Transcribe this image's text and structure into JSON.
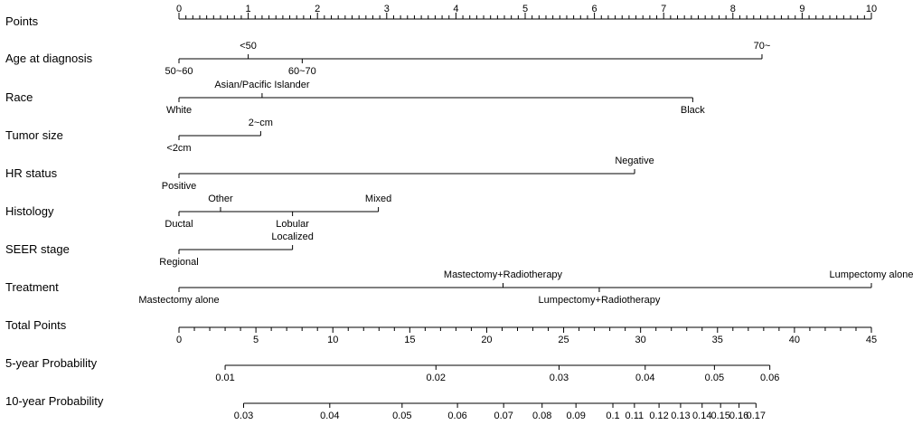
{
  "chart_data": {
    "type": "nomogram",
    "points_scale": {
      "label": "Points",
      "min": 0,
      "max": 10,
      "major_ticks": [
        0,
        1,
        2,
        3,
        4,
        5,
        6,
        7,
        8,
        9,
        10
      ],
      "minor_step": 0.1
    },
    "variables": [
      {
        "label": "Age at diagnosis",
        "levels": [
          {
            "name": "<50",
            "points": 1.0,
            "side": "above"
          },
          {
            "name": "70~",
            "points": 8.42,
            "side": "above"
          },
          {
            "name": "50~60",
            "points": 0,
            "side": "below"
          },
          {
            "name": "60~70",
            "points": 1.78,
            "side": "below"
          }
        ]
      },
      {
        "label": "Race",
        "levels": [
          {
            "name": "Asian/Pacific Islander",
            "points": 1.2,
            "side": "above"
          },
          {
            "name": "White",
            "points": 0,
            "side": "below"
          },
          {
            "name": "Black",
            "points": 7.42,
            "side": "below"
          }
        ]
      },
      {
        "label": "Tumor size",
        "levels": [
          {
            "name": "2~cm",
            "points": 1.18,
            "side": "above"
          },
          {
            "name": "<2cm",
            "points": 0,
            "side": "below"
          }
        ]
      },
      {
        "label": "HR status",
        "levels": [
          {
            "name": "Negative",
            "points": 6.58,
            "side": "above"
          },
          {
            "name": "Positive",
            "points": 0,
            "side": "below"
          }
        ]
      },
      {
        "label": "Histology",
        "levels": [
          {
            "name": "Other",
            "points": 0.6,
            "side": "above"
          },
          {
            "name": "Mixed",
            "points": 2.88,
            "side": "above"
          },
          {
            "name": "Ductal",
            "points": 0,
            "side": "below"
          },
          {
            "name": "Lobular",
            "points": 1.64,
            "side": "below"
          }
        ]
      },
      {
        "label": "SEER stage",
        "levels": [
          {
            "name": "Localized",
            "points": 1.64,
            "side": "above"
          },
          {
            "name": "Regional",
            "points": 0,
            "side": "below"
          }
        ]
      },
      {
        "label": "Treatment",
        "levels": [
          {
            "name": "Mastectomy+Radiotherapy",
            "points": 4.68,
            "side": "above"
          },
          {
            "name": "Lumpectomy alone",
            "points": 10,
            "side": "above"
          },
          {
            "name": "Mastectomy alone",
            "points": 0,
            "side": "below"
          },
          {
            "name": "Lumpectomy+Radiotherapy",
            "points": 6.07,
            "side": "below"
          }
        ]
      }
    ],
    "total_points": {
      "label": "Total Points",
      "min": 0,
      "max": 45,
      "major_ticks": [
        0,
        5,
        10,
        15,
        20,
        25,
        30,
        35,
        40,
        45
      ],
      "minor_step": 1
    },
    "probability_scales": [
      {
        "label": "5-year Probability",
        "ticks": [
          {
            "label": "0.01",
            "total_points": 3.0
          },
          {
            "label": "0.02",
            "total_points": 16.7
          },
          {
            "label": "0.03",
            "total_points": 24.7
          },
          {
            "label": "0.04",
            "total_points": 30.3
          },
          {
            "label": "0.05",
            "total_points": 34.8
          },
          {
            "label": "0.06",
            "total_points": 38.4
          }
        ]
      },
      {
        "label": "10-year Probability",
        "ticks": [
          {
            "label": "0.03",
            "total_points": 4.2
          },
          {
            "label": "0.04",
            "total_points": 9.8
          },
          {
            "label": "0.05",
            "total_points": 14.5
          },
          {
            "label": "0.06",
            "total_points": 18.1
          },
          {
            "label": "0.07",
            "total_points": 21.1
          },
          {
            "label": "0.08",
            "total_points": 23.6
          },
          {
            "label": "0.09",
            "total_points": 25.8
          },
          {
            "label": "0.1",
            "total_points": 28.2
          },
          {
            "label": "0.11",
            "total_points": 29.6
          },
          {
            "label": "0.12",
            "total_points": 31.2
          },
          {
            "label": "0.13",
            "total_points": 32.6
          },
          {
            "label": "0.14",
            "total_points": 34.0
          },
          {
            "label": "0.15",
            "total_points": 35.2
          },
          {
            "label": "0.16",
            "total_points": 36.4
          },
          {
            "label": "0.17",
            "total_points": 37.5
          }
        ]
      }
    ]
  }
}
